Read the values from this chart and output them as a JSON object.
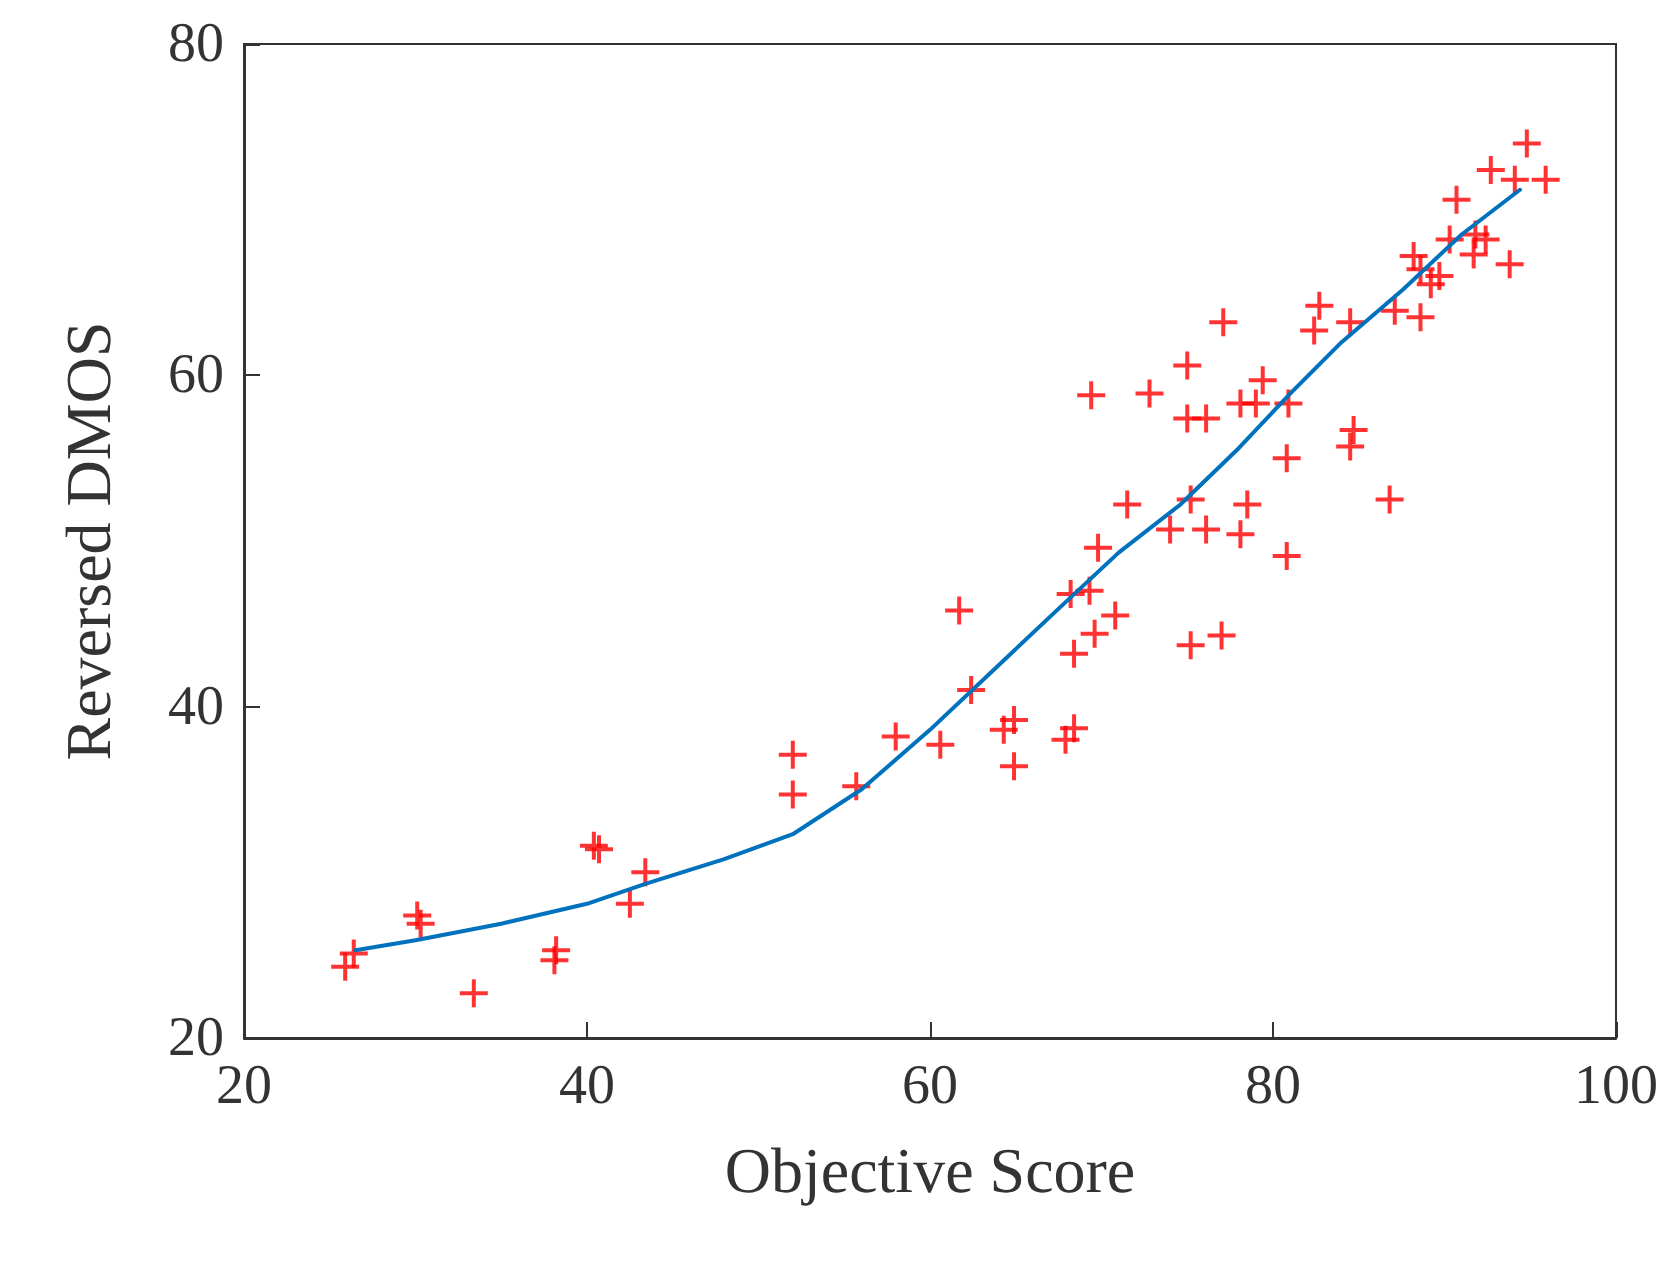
{
  "chart_data": {
    "type": "scatter",
    "xlabel": "Objective Score",
    "ylabel": "Reversed DMOS",
    "xlim": [
      20,
      100
    ],
    "ylim": [
      20,
      80
    ],
    "xticks": [
      20,
      40,
      60,
      80,
      100
    ],
    "yticks": [
      20,
      40,
      60,
      80
    ],
    "grid": false,
    "marker": "cross",
    "series": [
      {
        "color": "#ff0000",
        "x": [
          25.9,
          26.4,
          30.1,
          30.3,
          33.4,
          38.2,
          38.1,
          40.4,
          40.7,
          42.5,
          43.4,
          52.0,
          52.0,
          55.7,
          58.0,
          60.6,
          61.7,
          62.4,
          64.3,
          64.9,
          64.9,
          67.9,
          68.4,
          68.4,
          69.6,
          70.8,
          68.2,
          69.3,
          69.8,
          71.5,
          69.4,
          72.8,
          75.0,
          77.1,
          75.0,
          76.1,
          74.0,
          75.2,
          76.1,
          78.1,
          78.5,
          75.2,
          77.0,
          78.1,
          79.4,
          79.0,
          80.9,
          80.8,
          80.8,
          82.7,
          82.4,
          84.5,
          84.7,
          84.5,
          86.8,
          87.1,
          88.6,
          89.2,
          94.8,
          92.7,
          94.1,
          95.9,
          90.7,
          90.3,
          91.8,
          92.4,
          91.7,
          93.8,
          88.2,
          88.6,
          89.7
        ],
        "values": [
          24.3,
          25.1,
          27.4,
          26.9,
          22.7,
          25.3,
          24.7,
          31.6,
          31.4,
          28.1,
          30.0,
          37.1,
          34.7,
          35.2,
          38.2,
          37.7,
          45.8,
          41.0,
          38.6,
          39.2,
          36.4,
          38.0,
          38.7,
          43.2,
          44.4,
          45.5,
          46.8,
          47.0,
          49.6,
          52.2,
          58.8,
          58.9,
          60.6,
          63.2,
          57.4,
          57.4,
          50.7,
          52.5,
          50.7,
          50.4,
          52.2,
          43.7,
          44.3,
          58.3,
          59.7,
          58.3,
          58.3,
          55.0,
          49.1,
          64.2,
          62.7,
          63.2,
          56.7,
          55.7,
          52.5,
          63.9,
          63.5,
          65.5,
          74.0,
          72.4,
          71.8,
          71.8,
          70.6,
          68.2,
          68.5,
          68.2,
          67.3,
          66.7,
          67.2,
          66.4,
          66.0
        ]
      },
      {
        "type": "line",
        "color": "#0072bd",
        "marker": "none",
        "line_style": "solid",
        "x": [
          26.5,
          30,
          35,
          40,
          43.4,
          48,
          52,
          56,
          60,
          64,
          68,
          71,
          74.6,
          78,
          81,
          84,
          87.6,
          91,
          94.4
        ],
        "values": [
          25.3,
          25.9,
          26.9,
          28.1,
          29.3,
          30.8,
          32.3,
          35.0,
          38.6,
          42.5,
          46.4,
          49.3,
          52.2,
          55.6,
          58.9,
          62.0,
          65.2,
          68.5,
          71.2
        ]
      }
    ]
  }
}
